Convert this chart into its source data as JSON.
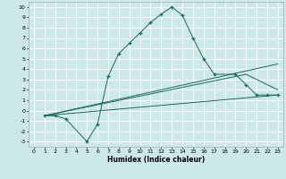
{
  "xlabel": "Humidex (Indice chaleur)",
  "background_color": "#cce8e8",
  "grid_color": "#ffffff",
  "line_color": "#1a6b5a",
  "xlim": [
    -0.5,
    23.5
  ],
  "ylim": [
    -3.5,
    10.5
  ],
  "xticks": [
    0,
    1,
    2,
    3,
    4,
    5,
    6,
    7,
    8,
    9,
    10,
    11,
    12,
    13,
    14,
    15,
    16,
    17,
    18,
    19,
    20,
    21,
    22,
    23
  ],
  "yticks": [
    -3,
    -2,
    -1,
    0,
    1,
    2,
    3,
    4,
    5,
    6,
    7,
    8,
    9,
    10
  ],
  "main_line": {
    "x": [
      1,
      2,
      3,
      5,
      6,
      7,
      8,
      9,
      10,
      11,
      12,
      13,
      14,
      15,
      16,
      17,
      19,
      20,
      21,
      22,
      23
    ],
    "y": [
      -0.5,
      -0.5,
      -0.8,
      -3.0,
      -1.3,
      3.3,
      5.5,
      6.5,
      7.5,
      8.5,
      9.3,
      10.0,
      9.2,
      7.0,
      5.0,
      3.5,
      3.5,
      2.5,
      1.5,
      1.5,
      1.5
    ]
  },
  "straight_lines": [
    {
      "x": [
        1,
        23
      ],
      "y": [
        -0.5,
        1.5
      ]
    },
    {
      "x": [
        1,
        20,
        23
      ],
      "y": [
        -0.5,
        3.5,
        2.0
      ]
    },
    {
      "x": [
        1,
        23
      ],
      "y": [
        -0.5,
        4.5
      ]
    }
  ]
}
